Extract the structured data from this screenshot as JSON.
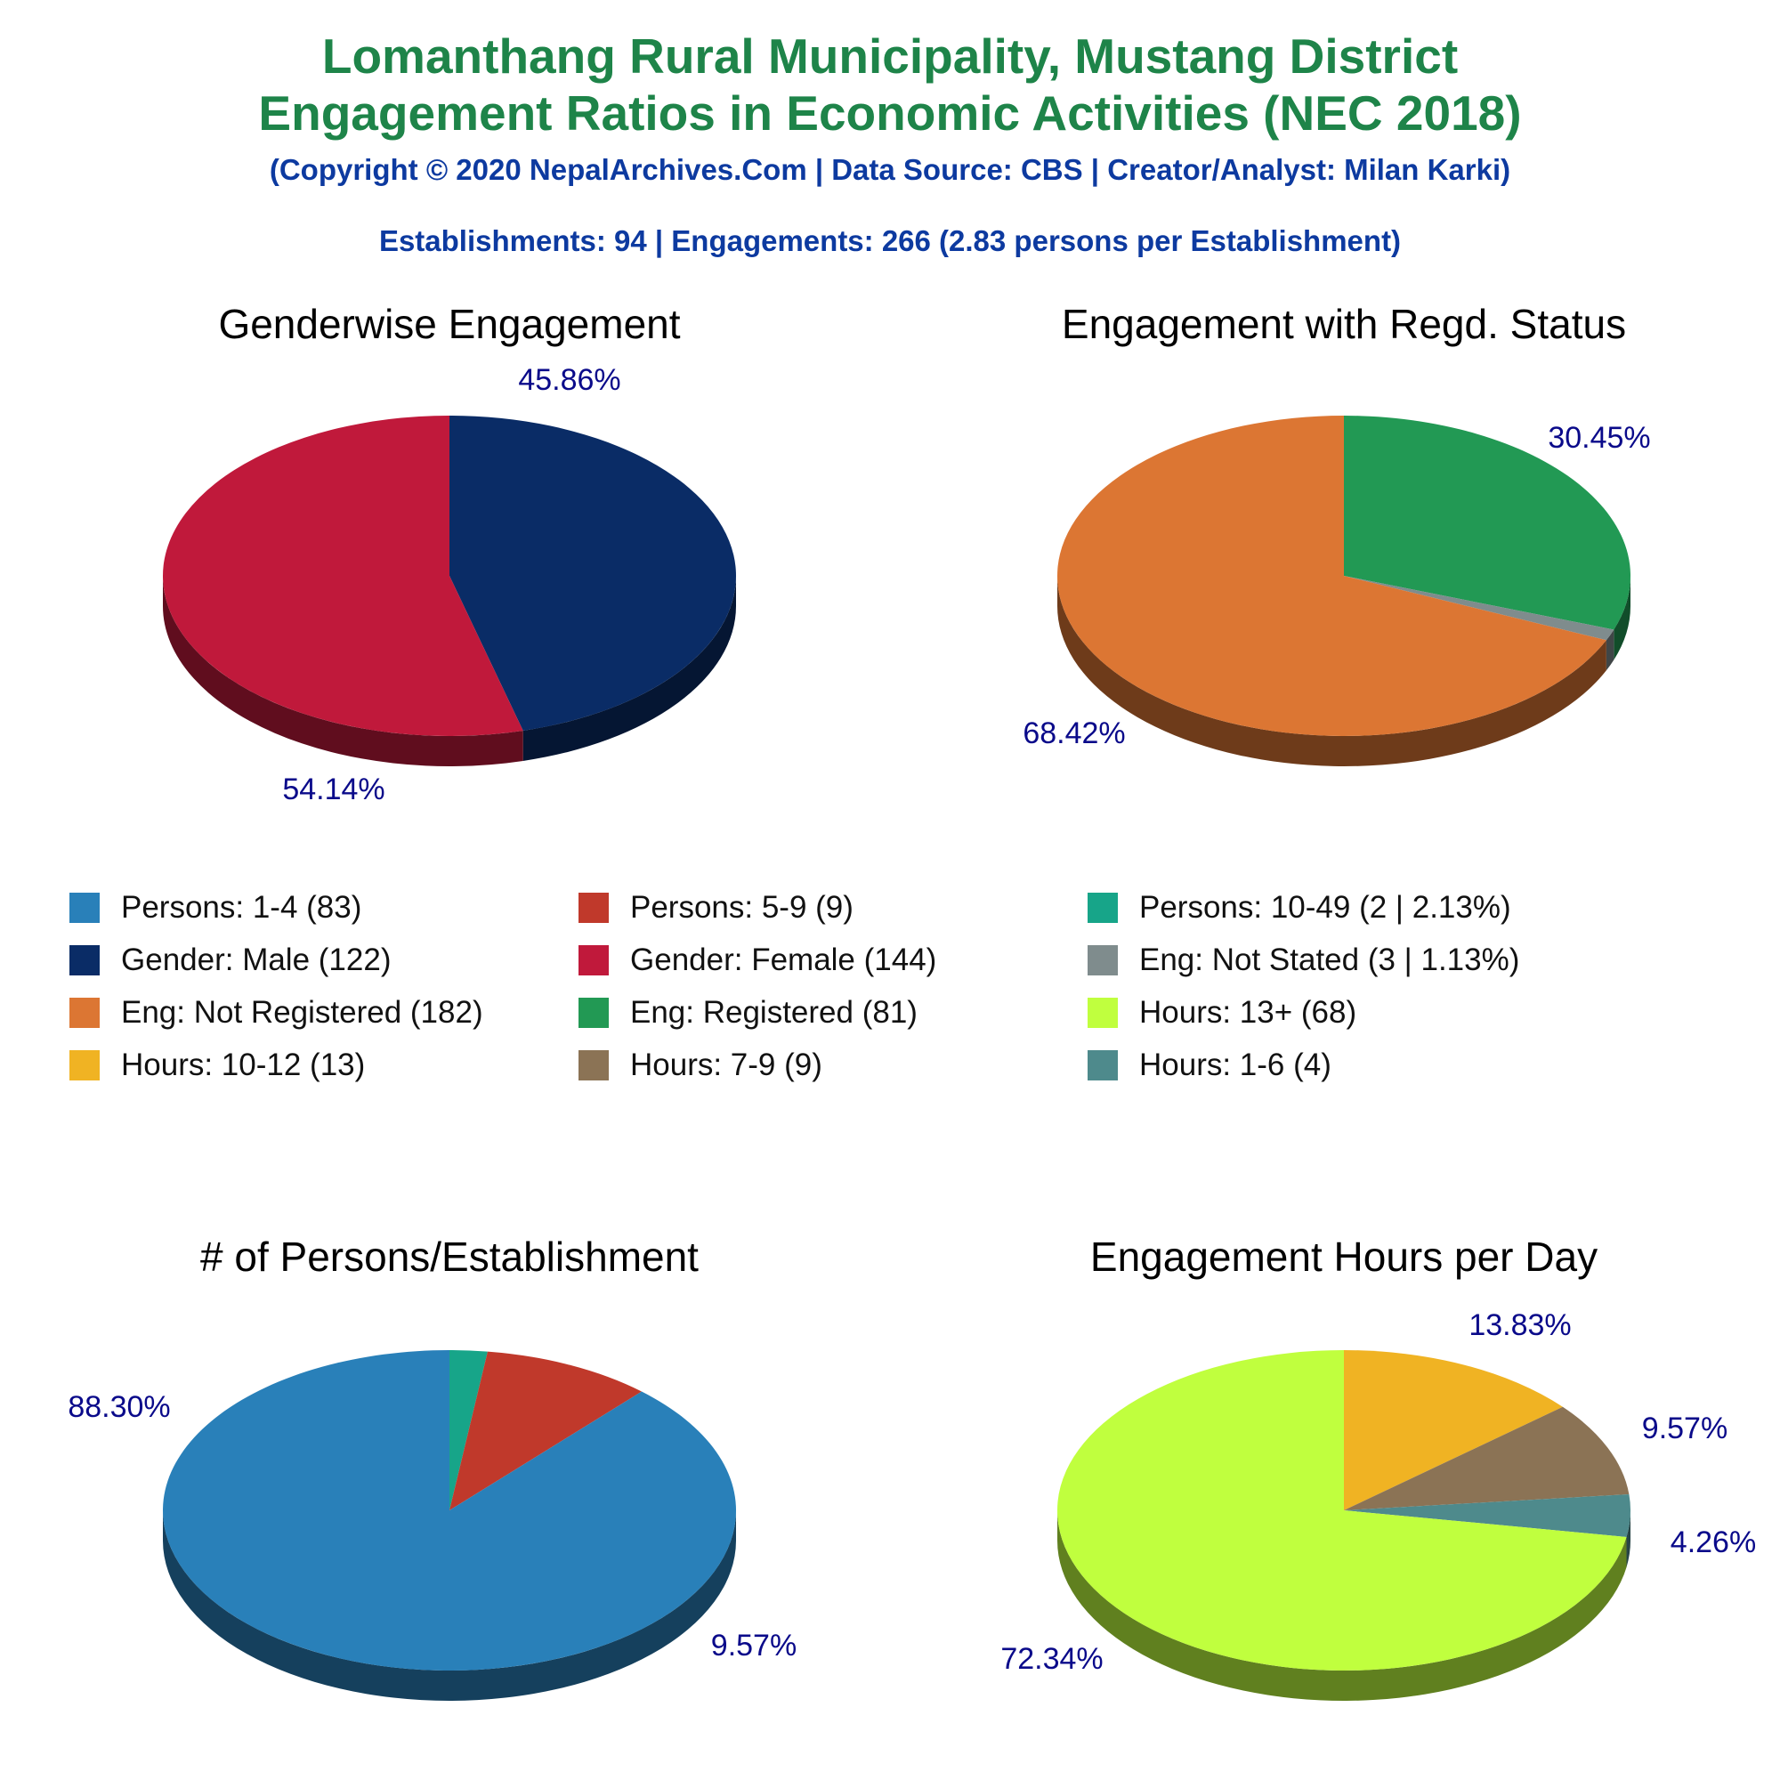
{
  "header": {
    "title_line1": "Lomanthang Rural Municipality, Mustang District",
    "title_line2": "Engagement Ratios in Economic Activities (NEC 2018)",
    "copyright": "(Copyright © 2020 NepalArchives.Com | Data Source: CBS | Creator/Analyst: Milan Karki)",
    "summary": "Establishments: 94 | Engagements: 266 (2.83 persons per Establishment)"
  },
  "chart_data": [
    {
      "type": "pie",
      "title": "Genderwise Engagement",
      "slices": [
        {
          "name": "Gender: Male",
          "value": 122,
          "percent": 45.86,
          "label": "45.86%",
          "color": "#0a2c66"
        },
        {
          "name": "Gender: Female",
          "value": 144,
          "percent": 54.14,
          "label": "54.14%",
          "color": "#c0193b"
        }
      ]
    },
    {
      "type": "pie",
      "title": "Engagement with Regd. Status",
      "slices": [
        {
          "name": "Eng: Registered",
          "value": 81,
          "percent": 30.45,
          "label": "30.45%",
          "color": "#229954"
        },
        {
          "name": "Eng: Not Stated",
          "value": 3,
          "percent": 1.13,
          "label": "",
          "color": "#7f8c8d"
        },
        {
          "name": "Eng: Not Registered",
          "value": 182,
          "percent": 68.42,
          "label": "68.42%",
          "color": "#dc7633"
        }
      ]
    },
    {
      "type": "pie",
      "title": "# of Persons/Establishment",
      "slices": [
        {
          "name": "Persons: 10-49",
          "value": 2,
          "percent": 2.13,
          "label": "",
          "color": "#17a589"
        },
        {
          "name": "Persons: 5-9",
          "value": 9,
          "percent": 9.57,
          "label": "9.57%",
          "color": "#c0392b"
        },
        {
          "name": "Persons: 1-4",
          "value": 83,
          "percent": 88.3,
          "label": "88.30%",
          "color": "#2980b9"
        }
      ]
    },
    {
      "type": "pie",
      "title": "Engagement Hours per Day",
      "slices": [
        {
          "name": "Hours: 10-12",
          "value": 13,
          "percent": 13.83,
          "label": "13.83%",
          "color": "#f0b323"
        },
        {
          "name": "Hours: 7-9",
          "value": 9,
          "percent": 9.57,
          "label": "9.57%",
          "color": "#8b7355"
        },
        {
          "name": "Hours: 1-6",
          "value": 4,
          "percent": 4.26,
          "label": "4.26%",
          "color": "#4e8a8c"
        },
        {
          "name": "Hours: 13+",
          "value": 68,
          "percent": 72.34,
          "label": "72.34%",
          "color": "#c0ff3e"
        }
      ]
    }
  ],
  "legend": [
    {
      "label": "Persons: 1-4 (83)",
      "color": "#2980b9"
    },
    {
      "label": "Persons: 5-9 (9)",
      "color": "#c0392b"
    },
    {
      "label": "Persons: 10-49 (2 | 2.13%)",
      "color": "#17a589"
    },
    {
      "label": "Gender: Male (122)",
      "color": "#0a2c66"
    },
    {
      "label": "Gender: Female (144)",
      "color": "#c0193b"
    },
    {
      "label": "Eng: Not Stated (3 | 1.13%)",
      "color": "#7f8c8d"
    },
    {
      "label": "Eng: Not Registered (182)",
      "color": "#dc7633"
    },
    {
      "label": "Eng: Registered (81)",
      "color": "#229954"
    },
    {
      "label": "Hours: 13+ (68)",
      "color": "#c0ff3e"
    },
    {
      "label": "Hours: 10-12 (13)",
      "color": "#f0b323"
    },
    {
      "label": "Hours: 7-9 (9)",
      "color": "#8b7355"
    },
    {
      "label": "Hours: 1-6 (4)",
      "color": "#4e8a8c"
    }
  ]
}
